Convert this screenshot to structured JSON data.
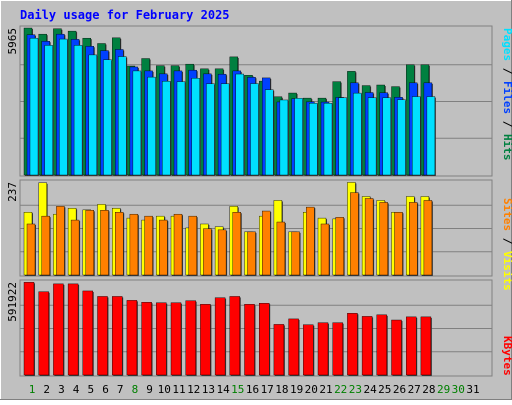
{
  "title": "Daily usage for February 2025",
  "colors": {
    "background": "#c0c0c0",
    "plot_background": "#c0c0c0",
    "title": "#0000ff",
    "hits": "#008040",
    "files": "#0040ff",
    "pages": "#00e0ff",
    "visits": "#ffff00",
    "sites": "#ff8000",
    "kbytes": "#ff0000",
    "weekday": "#008040",
    "weekend": "#00a060",
    "day_label": "#000000",
    "highlight_day_label": "#008000"
  },
  "chart_data": [
    {
      "type": "bar",
      "title": "Pages / Files / Hits",
      "ylabel_max": "5965",
      "ylim": [
        0,
        5965
      ],
      "legend": [
        "Pages",
        "Files",
        "Hits"
      ],
      "categories": [
        "1",
        "2",
        "3",
        "4",
        "5",
        "6",
        "7",
        "8",
        "9",
        "10",
        "11",
        "12",
        "13",
        "14",
        "15",
        "16",
        "17",
        "18",
        "19",
        "20",
        "21",
        "22",
        "23",
        "24",
        "25",
        "26",
        "27",
        "28"
      ],
      "series": [
        {
          "name": "Hits",
          "values": [
            5964,
            5715,
            5935,
            5838,
            5552,
            5336,
            5566,
            4422,
            4726,
            4434,
            4434,
            4498,
            4308,
            4308,
            4793,
            4046,
            3810,
            3175,
            3326,
            3120,
            3120,
            3789,
            4206,
            3629,
            3652,
            3587,
            4474,
            4474
          ]
        },
        {
          "name": "Files",
          "values": [
            5693,
            5429,
            5715,
            5504,
            5224,
            5048,
            5093,
            4384,
            4224,
            4104,
            4224,
            4254,
            4104,
            4091,
            4224,
            3968,
            3940,
            2964,
            3095,
            2967,
            2960,
            3149,
            3740,
            3347,
            3338,
            3156,
            3740,
            3740
          ]
        },
        {
          "name": "Pages",
          "values": [
            5552,
            5259,
            5516,
            5259,
            4873,
            4678,
            4806,
            4223,
            3972,
            3805,
            3788,
            3926,
            3701,
            3701,
            4097,
            3709,
            3461,
            3045,
            3111,
            2910,
            2910,
            3135,
            3322,
            3137,
            3136,
            3053,
            3181,
            3181
          ]
        }
      ]
    },
    {
      "type": "bar",
      "title": "Sites / Visits",
      "ylabel_max": "237",
      "ylim": [
        0,
        237
      ],
      "legend": [
        "Sites",
        "Visits"
      ],
      "categories": [
        "1",
        "2",
        "3",
        "4",
        "5",
        "6",
        "7",
        "8",
        "9",
        "10",
        "11",
        "12",
        "13",
        "14",
        "15",
        "16",
        "17",
        "18",
        "19",
        "20",
        "21",
        "22",
        "23",
        "24",
        "25",
        "26",
        "27",
        "28"
      ],
      "series": [
        {
          "name": "Visits",
          "values": [
            160,
            235,
            155,
            170,
            166,
            180,
            170,
            145,
            140,
            150,
            150,
            120,
            130,
            123,
            175,
            110,
            150,
            190,
            110,
            160,
            145,
            143,
            236,
            200,
            190,
            160,
            200,
            200
          ]
        },
        {
          "name": "Sites",
          "values": [
            130,
            150,
            175,
            140,
            165,
            165,
            160,
            155,
            150,
            140,
            155,
            150,
            118,
            115,
            160,
            110,
            163,
            135,
            110,
            173,
            130,
            147,
            210,
            195,
            185,
            160,
            185,
            190
          ]
        }
      ]
    },
    {
      "type": "bar",
      "title": "KBytes",
      "ylabel_max": "591922",
      "ylim": [
        0,
        591922
      ],
      "legend": [
        "KBytes"
      ],
      "categories": [
        "1",
        "2",
        "3",
        "4",
        "5",
        "6",
        "7",
        "8",
        "9",
        "10",
        "11",
        "12",
        "13",
        "14",
        "15",
        "16",
        "17",
        "18",
        "19",
        "20",
        "21",
        "22",
        "23",
        "24",
        "25",
        "26",
        "27",
        "28"
      ],
      "series": [
        {
          "name": "KBytes",
          "values": [
            590000,
            530000,
            580000,
            580000,
            535000,
            500000,
            500000,
            475000,
            463000,
            460000,
            460000,
            473000,
            450000,
            492000,
            500000,
            450000,
            457000,
            322000,
            357000,
            320000,
            333000,
            333000,
            393000,
            373000,
            383000,
            350000,
            370000,
            370000
          ]
        }
      ]
    }
  ],
  "days": [
    "1",
    "2",
    "3",
    "4",
    "5",
    "6",
    "7",
    "8",
    "9",
    "10",
    "11",
    "12",
    "13",
    "14",
    "15",
    "16",
    "17",
    "18",
    "19",
    "20",
    "21",
    "22",
    "23",
    "24",
    "25",
    "26",
    "27",
    "28",
    "29",
    "30",
    "31"
  ],
  "highlight_days": [
    "1",
    "8",
    "15",
    "22",
    "23",
    "29",
    "30"
  ],
  "right_labels": {
    "top": [
      "Pages",
      " / ",
      "Files",
      " / ",
      "Hits"
    ],
    "mid": [
      "Sites",
      " / ",
      "Visits"
    ],
    "bottom": [
      "KBytes"
    ]
  }
}
